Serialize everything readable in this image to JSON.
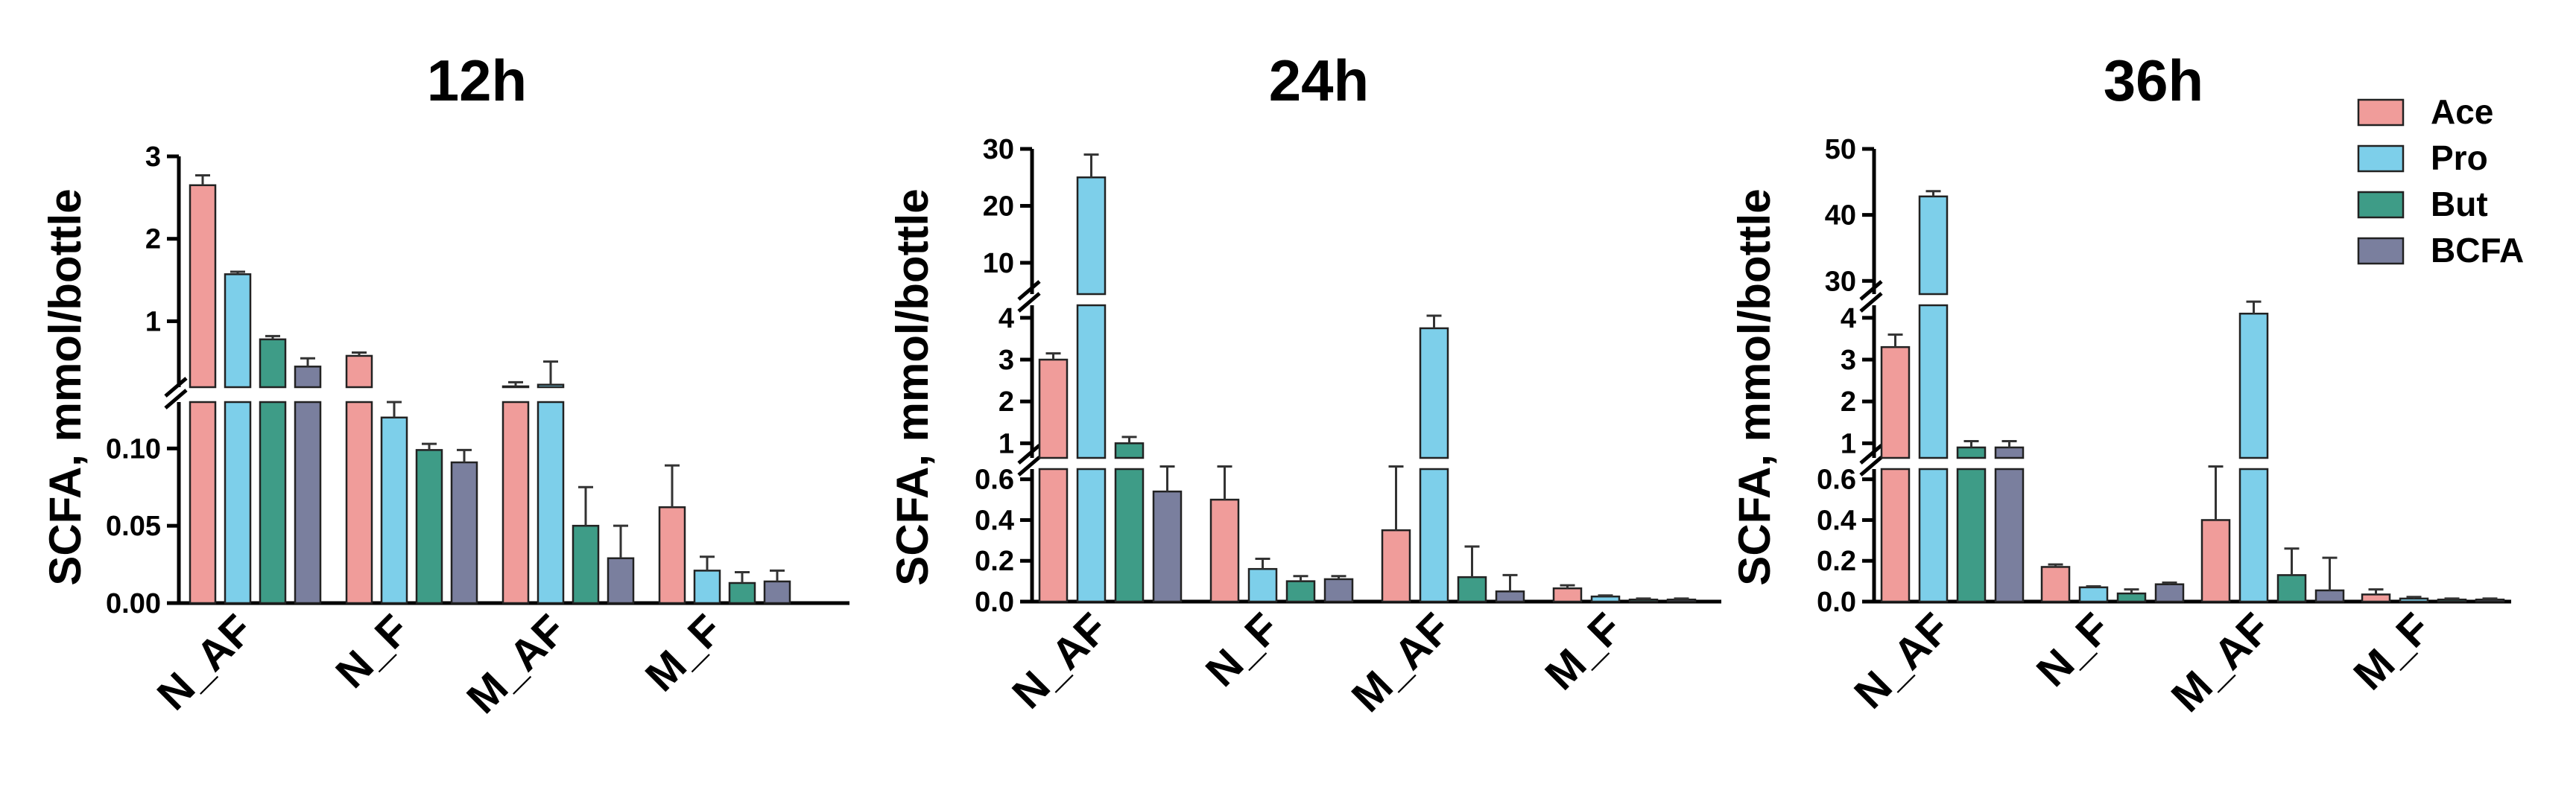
{
  "colors": {
    "Ace": "#F09C9A",
    "Pro": "#7DCFEA",
    "But": "#3E9C87",
    "BCFA": "#7A7F9E"
  },
  "legend": {
    "items": [
      "Ace",
      "Pro",
      "But",
      "BCFA"
    ],
    "placement": "top-right"
  },
  "chart_data": [
    {
      "type": "bar",
      "title": "12h",
      "ylabel": "SCFA, mmol/bottle",
      "categories": [
        "N_AF",
        "N_F",
        "M_AF",
        "M_F"
      ],
      "broken_axis": true,
      "segments": [
        {
          "range": [
            0,
            0.13
          ],
          "ticks": [
            0.0,
            0.05,
            0.1
          ],
          "tick_labels": [
            "0.00",
            "0.05",
            "0.10"
          ]
        },
        {
          "range": [
            0.2,
            3.0
          ],
          "ticks": [
            1,
            2,
            3
          ],
          "tick_labels": [
            "1",
            "2",
            "3"
          ]
        }
      ],
      "series": [
        {
          "name": "Ace",
          "values": [
            2.65,
            0.58,
            0.21,
            0.062
          ],
          "errors": [
            0.12,
            0.04,
            0.05,
            0.027
          ]
        },
        {
          "name": "Pro",
          "values": [
            1.57,
            0.12,
            0.23,
            0.021
          ],
          "errors": [
            0.03,
            0.01,
            0.28,
            0.009
          ]
        },
        {
          "name": "But",
          "values": [
            0.78,
            0.099,
            0.05,
            0.013
          ],
          "errors": [
            0.04,
            0.004,
            0.025,
            0.007
          ]
        },
        {
          "name": "BCFA",
          "values": [
            0.45,
            0.091,
            0.029,
            0.014
          ],
          "errors": [
            0.1,
            0.008,
            0.021,
            0.007
          ]
        }
      ]
    },
    {
      "type": "bar",
      "title": "24h",
      "ylabel": "SCFA, mmol/bottle",
      "categories": [
        "N_AF",
        "N_F",
        "M_AF",
        "M_F"
      ],
      "broken_axis": true,
      "segments": [
        {
          "range": [
            0,
            0.65
          ],
          "ticks": [
            0.0,
            0.2,
            0.4,
            0.6
          ],
          "tick_labels": [
            "0.0",
            "0.2",
            "0.4",
            "0.6"
          ]
        },
        {
          "range": [
            0.65,
            4.3
          ],
          "ticks": [
            1,
            2,
            3,
            4
          ],
          "tick_labels": [
            "1",
            "2",
            "3",
            "4"
          ]
        },
        {
          "range": [
            4.5,
            30
          ],
          "ticks": [
            10,
            20,
            30
          ],
          "tick_labels": [
            "10",
            "20",
            "30"
          ]
        }
      ],
      "series": [
        {
          "name": "Ace",
          "values": [
            3.0,
            0.5,
            0.35,
            0.065
          ],
          "errors": [
            0.15,
            0.26,
            0.4,
            0.015
          ]
        },
        {
          "name": "Pro",
          "values": [
            25.0,
            0.16,
            3.75,
            0.025
          ],
          "errors": [
            4.0,
            0.05,
            0.3,
            0.005
          ]
        },
        {
          "name": "But",
          "values": [
            1.0,
            0.1,
            0.12,
            0.01
          ],
          "errors": [
            0.15,
            0.025,
            0.15,
            0.005
          ]
        },
        {
          "name": "BCFA",
          "values": [
            0.54,
            0.11,
            0.05,
            0.01
          ],
          "errors": [
            0.16,
            0.015,
            0.08,
            0.005
          ]
        }
      ]
    },
    {
      "type": "bar",
      "title": "36h",
      "ylabel": "SCFA, mmol/bottle",
      "categories": [
        "N_AF",
        "N_F",
        "M_AF",
        "M_F"
      ],
      "broken_axis": true,
      "segments": [
        {
          "range": [
            0,
            0.65
          ],
          "ticks": [
            0.0,
            0.2,
            0.4,
            0.6
          ],
          "tick_labels": [
            "0.0",
            "0.2",
            "0.4",
            "0.6"
          ]
        },
        {
          "range": [
            0.65,
            4.3
          ],
          "ticks": [
            1,
            2,
            3,
            4
          ],
          "tick_labels": [
            "1",
            "2",
            "3",
            "4"
          ]
        },
        {
          "range": [
            28,
            50
          ],
          "ticks": [
            30,
            40,
            50
          ],
          "tick_labels": [
            "30",
            "40",
            "50"
          ]
        }
      ],
      "series": [
        {
          "name": "Ace",
          "values": [
            3.3,
            0.17,
            0.4,
            0.035
          ],
          "errors": [
            0.3,
            0.012,
            0.56,
            0.025
          ]
        },
        {
          "name": "Pro",
          "values": [
            42.8,
            0.07,
            4.1,
            0.015
          ],
          "errors": [
            0.8,
            0.005,
            0.35,
            0.008
          ]
        },
        {
          "name": "But",
          "values": [
            0.9,
            0.04,
            0.13,
            0.01
          ],
          "errors": [
            0.15,
            0.02,
            0.13,
            0.005
          ]
        },
        {
          "name": "BCFA",
          "values": [
            0.9,
            0.085,
            0.055,
            0.01
          ],
          "errors": [
            0.15,
            0.008,
            0.16,
            0.005
          ]
        }
      ]
    }
  ]
}
